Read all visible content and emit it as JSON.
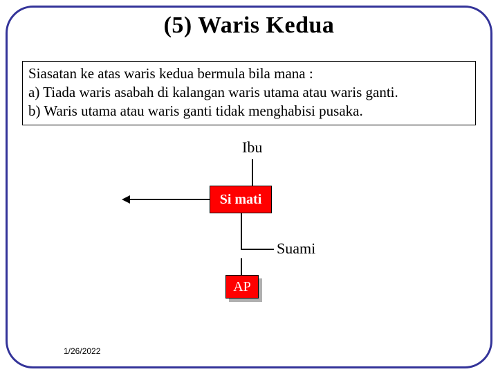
{
  "title": "(5) Waris Kedua",
  "textbox": {
    "intro": "Siasatan ke atas waris kedua bermula bila mana :",
    "a": "a)   Tiada waris asabah di kalangan waris utama atau waris ganti.",
    "b": "b)   Waris utama atau waris ganti tidak menghabisi pusaka."
  },
  "diagram": {
    "ibu": "Ibu",
    "simati": "Si mati",
    "suami": "Suami",
    "ap": "AP",
    "colors": {
      "simati_bg": "#ff0000",
      "simati_fg": "#ffffff",
      "ap_bg": "#ff0000",
      "ap_fg": "#ffffff",
      "ap_shadow": "#b0b0b0",
      "frame_border": "#333399"
    }
  },
  "date": "1/26/2022"
}
